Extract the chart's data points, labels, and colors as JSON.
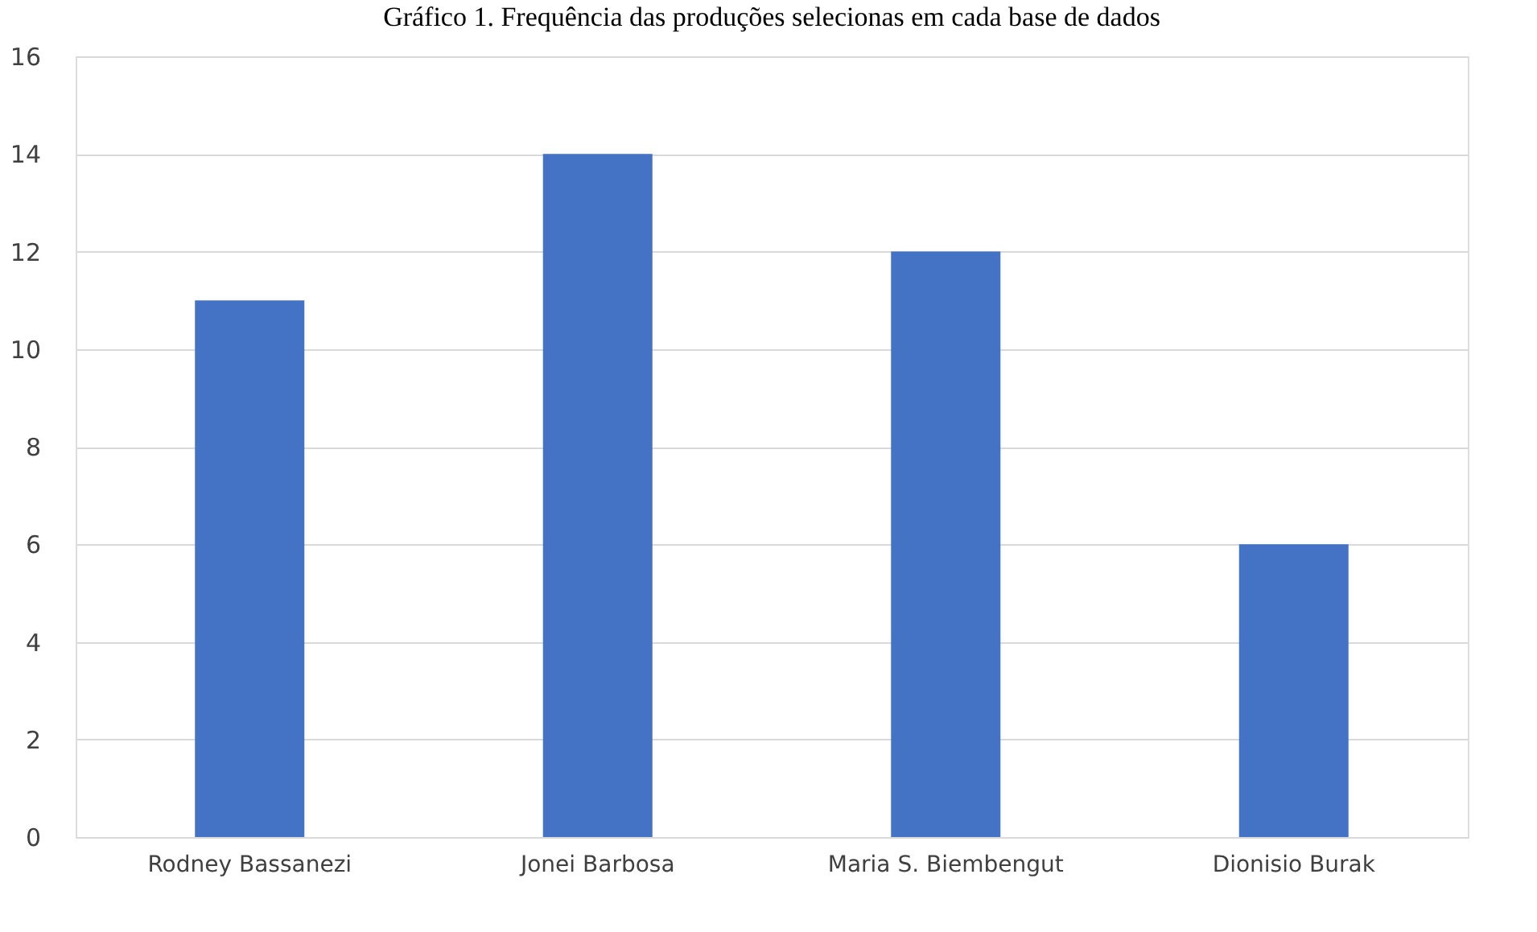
{
  "chart_data": {
    "type": "bar",
    "title": "Gráfico 1. Frequência das produções selecionas em cada base de dados",
    "categories": [
      "Rodney Bassanezi",
      "Jonei Barbosa",
      "Maria S. Biembengut",
      "Dionisio Burak"
    ],
    "values": [
      11,
      14,
      12,
      6
    ],
    "color": "#4472c4",
    "ylim": [
      0,
      16
    ],
    "yticks": [
      0,
      2,
      4,
      6,
      8,
      10,
      12,
      14,
      16
    ],
    "grid": "y"
  }
}
